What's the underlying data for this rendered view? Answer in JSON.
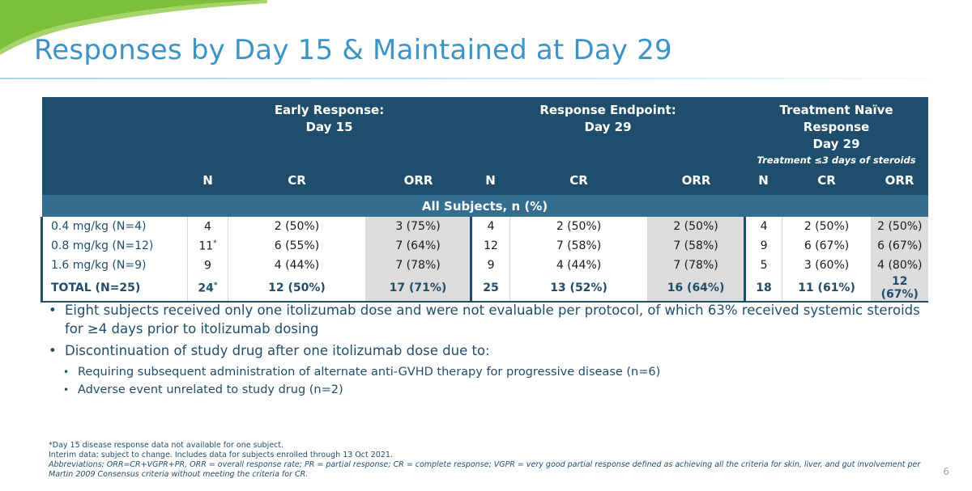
{
  "title": "Responses by Day 15 & Maintained at Day 29",
  "table": {
    "groups": [
      {
        "line1": "Early Response:",
        "line2": "Day 15",
        "note": ""
      },
      {
        "line1": "Response Endpoint:",
        "line2": "Day 29",
        "note": ""
      },
      {
        "line1": "Treatment Naïve Response",
        "line2": "Day 29",
        "note": "Treatment ≤3 days of steroids"
      }
    ],
    "columns": [
      "N",
      "CR",
      "ORR",
      "N",
      "CR",
      "ORR",
      "N",
      "CR",
      "ORR"
    ],
    "subheader": "All Subjects, n (%)",
    "rows": [
      {
        "label": "0.4 mg/kg (N=4)",
        "n1": "4",
        "n1_sup": "",
        "cr1": "2 (50%)",
        "orr1": "3 (75%)",
        "n2": "4",
        "cr2": "2 (50%)",
        "orr2": "2 (50%)",
        "n3": "4",
        "cr3": "2 (50%)",
        "orr3": "2 (50%)"
      },
      {
        "label": "0.8 mg/kg (N=12)",
        "n1": "11",
        "n1_sup": "*",
        "cr1": "6 (55%)",
        "orr1": "7 (64%)",
        "n2": "12",
        "cr2": "7 (58%)",
        "orr2": "7 (58%)",
        "n3": "9",
        "cr3": "6 (67%)",
        "orr3": "6 (67%)"
      },
      {
        "label": "1.6 mg/kg (N=9)",
        "n1": "9",
        "n1_sup": "",
        "cr1": "4 (44%)",
        "orr1": "7 (78%)",
        "n2": "9",
        "cr2": "4 (44%)",
        "orr2": "7 (78%)",
        "n3": "5",
        "cr3": "3 (60%)",
        "orr3": "4 (80%)"
      },
      {
        "label": "TOTAL (N=25)",
        "n1": "24",
        "n1_sup": "*",
        "cr1": "12 (50%)",
        "orr1": "17 (71%)",
        "n2": "25",
        "cr2": "13 (52%)",
        "orr2": "16 (64%)",
        "n3": "18",
        "cr3": "11 (61%)",
        "orr3": "12 (67%)"
      }
    ]
  },
  "bullets": [
    {
      "text": "Eight subjects received only one itolizumab dose and were not evaluable per protocol, of which 63% received systemic steroids for ≥4 days prior to itolizumab dosing",
      "sub": []
    },
    {
      "text": "Discontinuation of study drug after one itolizumab dose due to:",
      "sub": [
        "Requiring subsequent administration of alternate anti-GVHD therapy for progressive disease (n=6)",
        "Adverse event unrelated to study drug (n=2)"
      ]
    }
  ],
  "footnotes": {
    "line1": "*Day 15 disease response data not available for one subject.",
    "line2": "Interim data; subject to change. Includes data for subjects enrolled through 13 Oct 2021.",
    "abbreviations": "Abbreviations: ORR=CR+VGPR+PR, ORR = overall response rate; PR = partial response; CR = complete response; VGPR = very good partial response defined as achieving all the criteria for skin, liver, and gut involvement per Martin 2009 Consensus criteria without meeting the criteria for CR."
  },
  "page_number": "6",
  "colors": {
    "title": "#3b93c8",
    "header_bg": "#1f4e6d",
    "subheader_bg": "#336e90",
    "orr_bg": "#dcdcdc",
    "accent_green": "#7cbf3b"
  }
}
